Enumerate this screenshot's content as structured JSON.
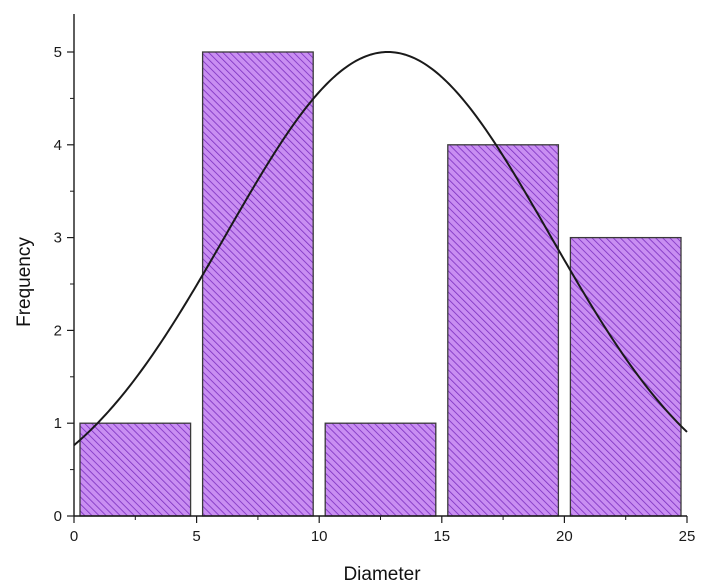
{
  "chart_data": {
    "type": "bar",
    "title": "",
    "xlabel": "Diameter",
    "ylabel": "Frequency",
    "xlim": [
      0,
      25
    ],
    "ylim": [
      0,
      5.4
    ],
    "grid": false,
    "x_ticks": [
      "0",
      "5",
      "10",
      "15",
      "20",
      "25"
    ],
    "y_ticks": [
      "0",
      "1",
      "2",
      "3",
      "4",
      "5"
    ],
    "bins": [
      {
        "from": 0,
        "to": 5,
        "value": 1
      },
      {
        "from": 5,
        "to": 10,
        "value": 5
      },
      {
        "from": 10,
        "to": 15,
        "value": 1
      },
      {
        "from": 15,
        "to": 20,
        "value": 4
      },
      {
        "from": 20,
        "to": 25,
        "value": 3
      }
    ],
    "fit_curve": {
      "type": "normal",
      "peak_x": 12.8,
      "peak_y": 5.0,
      "sigma": 6.6
    },
    "colors": {
      "bar_fill": "#c98ef2",
      "hatch": "#7b2fc0",
      "bar_edge": "#3a3a3a",
      "curve": "#1a1a1a"
    }
  }
}
